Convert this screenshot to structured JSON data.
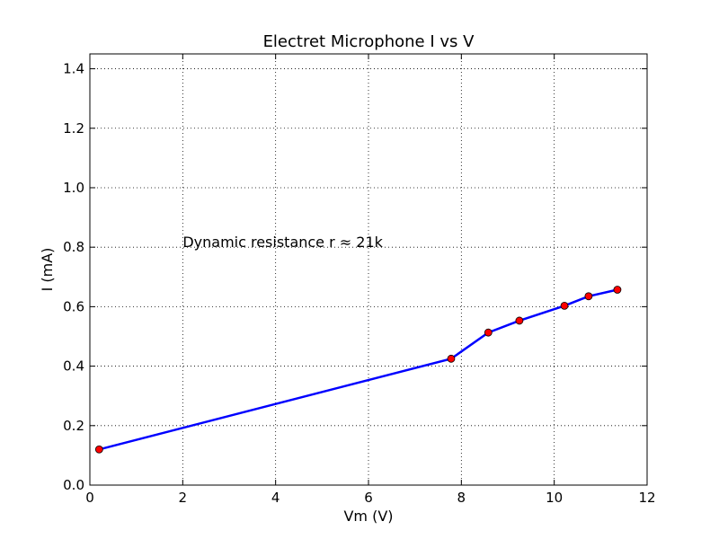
{
  "chart_data": {
    "type": "line",
    "title": "Electret Microphone I vs V",
    "xlabel": "Vm  (V)",
    "ylabel": "I  (mA)",
    "xlim": [
      0,
      12
    ],
    "ylim": [
      0,
      1.45
    ],
    "x_ticks": [
      0,
      2,
      4,
      6,
      8,
      10,
      12
    ],
    "x_tick_labels": [
      "0",
      "2",
      "4",
      "6",
      "8",
      "10",
      "12"
    ],
    "y_ticks": [
      0.0,
      0.2,
      0.4,
      0.6,
      0.8,
      1.0,
      1.2,
      1.4
    ],
    "y_tick_labels": [
      "0.0",
      "0.2",
      "0.4",
      "0.6",
      "0.8",
      "1.0",
      "1.2",
      "1.4"
    ],
    "grid": true,
    "series": [
      {
        "x": [
          0.2,
          7.78,
          8.58,
          9.25,
          10.22,
          10.74,
          11.36
        ],
        "y": [
          0.12,
          0.425,
          0.513,
          0.553,
          0.603,
          0.635,
          0.657
        ],
        "line_color": "#0000ff",
        "marker_color": "#ff0000"
      }
    ],
    "annotations": [
      {
        "text": "Dynamic resistance r ≈ 21k",
        "x": 2.0,
        "y": 0.8
      }
    ]
  }
}
